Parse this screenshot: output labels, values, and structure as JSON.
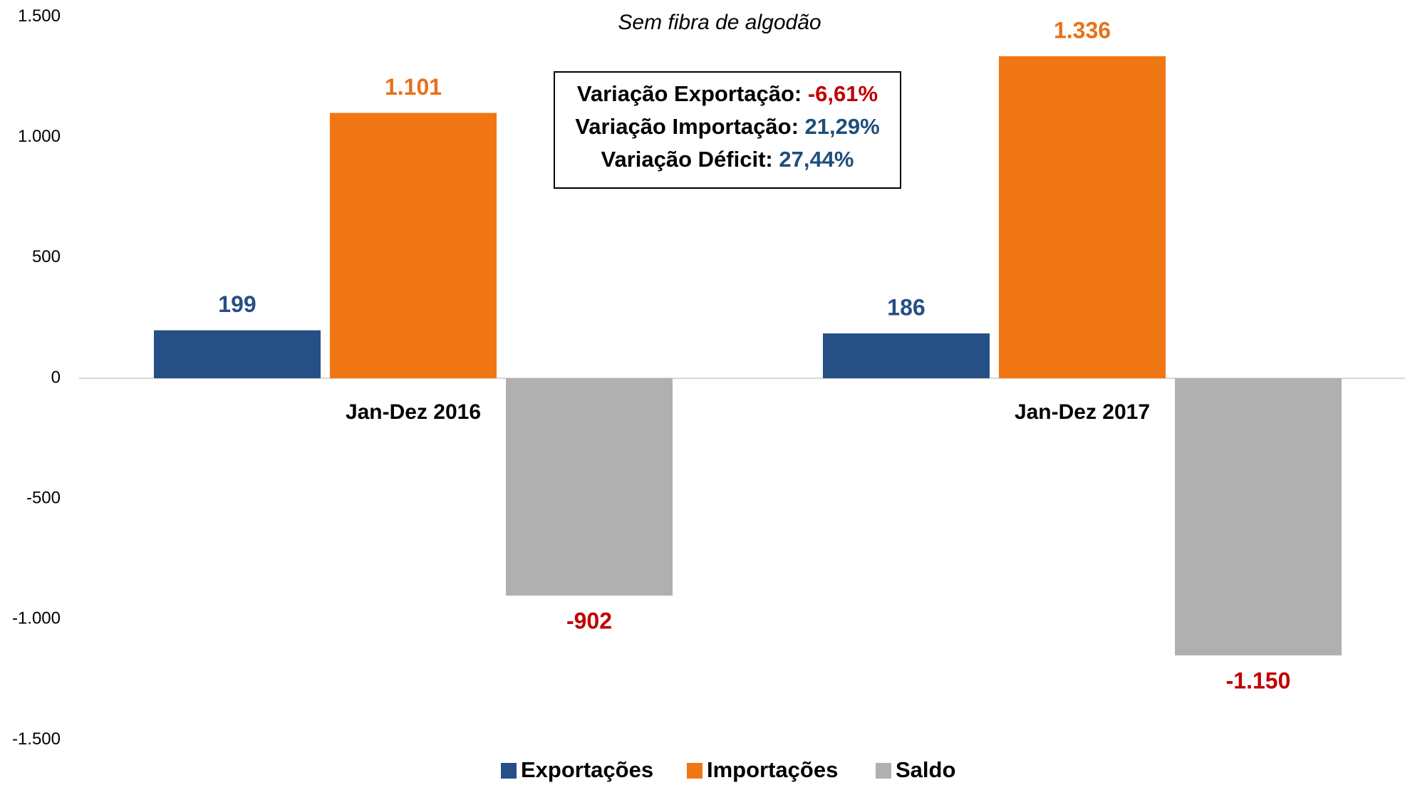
{
  "chart_data": {
    "type": "bar",
    "subtitle": "Sem fibra de algodão",
    "categories": [
      "Jan-Dez 2016",
      "Jan-Dez 2017"
    ],
    "series": [
      {
        "name": "Exportações",
        "color": "#264f86",
        "label_color": "#264f86",
        "values": [
          199,
          186
        ],
        "value_labels": [
          "199",
          "186"
        ]
      },
      {
        "name": "Importações",
        "color": "#f07613",
        "label_color": "#e8711a",
        "values": [
          1101,
          1336
        ],
        "value_labels": [
          "1.101",
          "1.336"
        ]
      },
      {
        "name": "Saldo",
        "color": "#b0b0b0",
        "label_color": "#c00000",
        "values": [
          -902,
          -1150
        ],
        "value_labels": [
          "-902",
          "-1.150"
        ]
      }
    ],
    "ylim": [
      -1500,
      1500
    ],
    "yticks": [
      {
        "value": 1500,
        "label": "1.500"
      },
      {
        "value": 1000,
        "label": "1.000"
      },
      500,
      0,
      -500,
      {
        "value": -1000,
        "label": "-1.000"
      },
      {
        "value": -1500,
        "label": "-1.500"
      }
    ],
    "annotation": [
      {
        "text": "Variação Exportação:",
        "value": "-6,61%",
        "value_color": "#c00000"
      },
      {
        "text": "Variação Importação:",
        "value": "21,29%",
        "value_color": "#1f4e79"
      },
      {
        "text": "Variação Déficit:",
        "value": "27,44%",
        "value_color": "#1f4e79"
      }
    ],
    "legend": "bottom"
  }
}
